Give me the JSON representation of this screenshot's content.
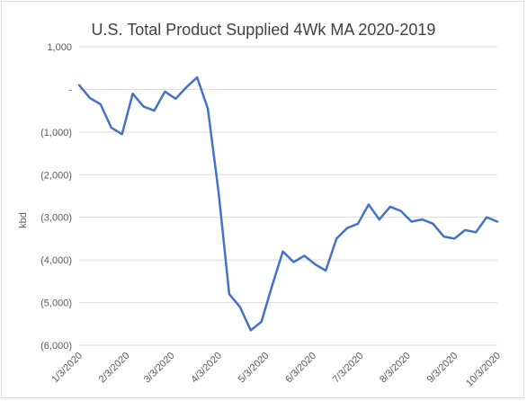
{
  "chart_data": {
    "type": "line",
    "title": "U.S. Total Product Supplied 4Wk MA 2020-2019",
    "xlabel": "",
    "ylabel": "kbd",
    "ylim": [
      -6000,
      1000
    ],
    "y_ticks": [
      1000,
      0,
      -1000,
      -2000,
      -3000,
      -4000,
      -5000,
      -6000
    ],
    "y_tick_labels": [
      "1,000",
      "-",
      "(1,000)",
      "(2,000)",
      "(3,000)",
      "(4,000)",
      "(5,000)",
      "(6,000)"
    ],
    "x_tick_labels": [
      "1/3/2020",
      "2/3/2020",
      "3/3/2020",
      "4/3/2020",
      "5/3/2020",
      "6/3/2020",
      "7/3/2020",
      "8/3/2020",
      "9/3/2020",
      "10/3/2020"
    ],
    "gridlines": "horizontal",
    "legend": "none",
    "line_color": "#4472c4",
    "series": [
      {
        "values": [
          100,
          -200,
          -350,
          -900,
          -1050,
          -100,
          -400,
          -500,
          -50,
          -220,
          50,
          280,
          -450,
          -2400,
          -4800,
          -5100,
          -5650,
          -5450,
          -4600,
          -3800,
          -4050,
          -3900,
          -4100,
          -4250,
          -3500,
          -3250,
          -3150,
          -2700,
          -3050,
          -2750,
          -2850,
          -3100,
          -3050,
          -3150,
          -3450,
          -3500,
          -3300,
          -3350,
          -3000,
          -3100
        ]
      }
    ]
  }
}
